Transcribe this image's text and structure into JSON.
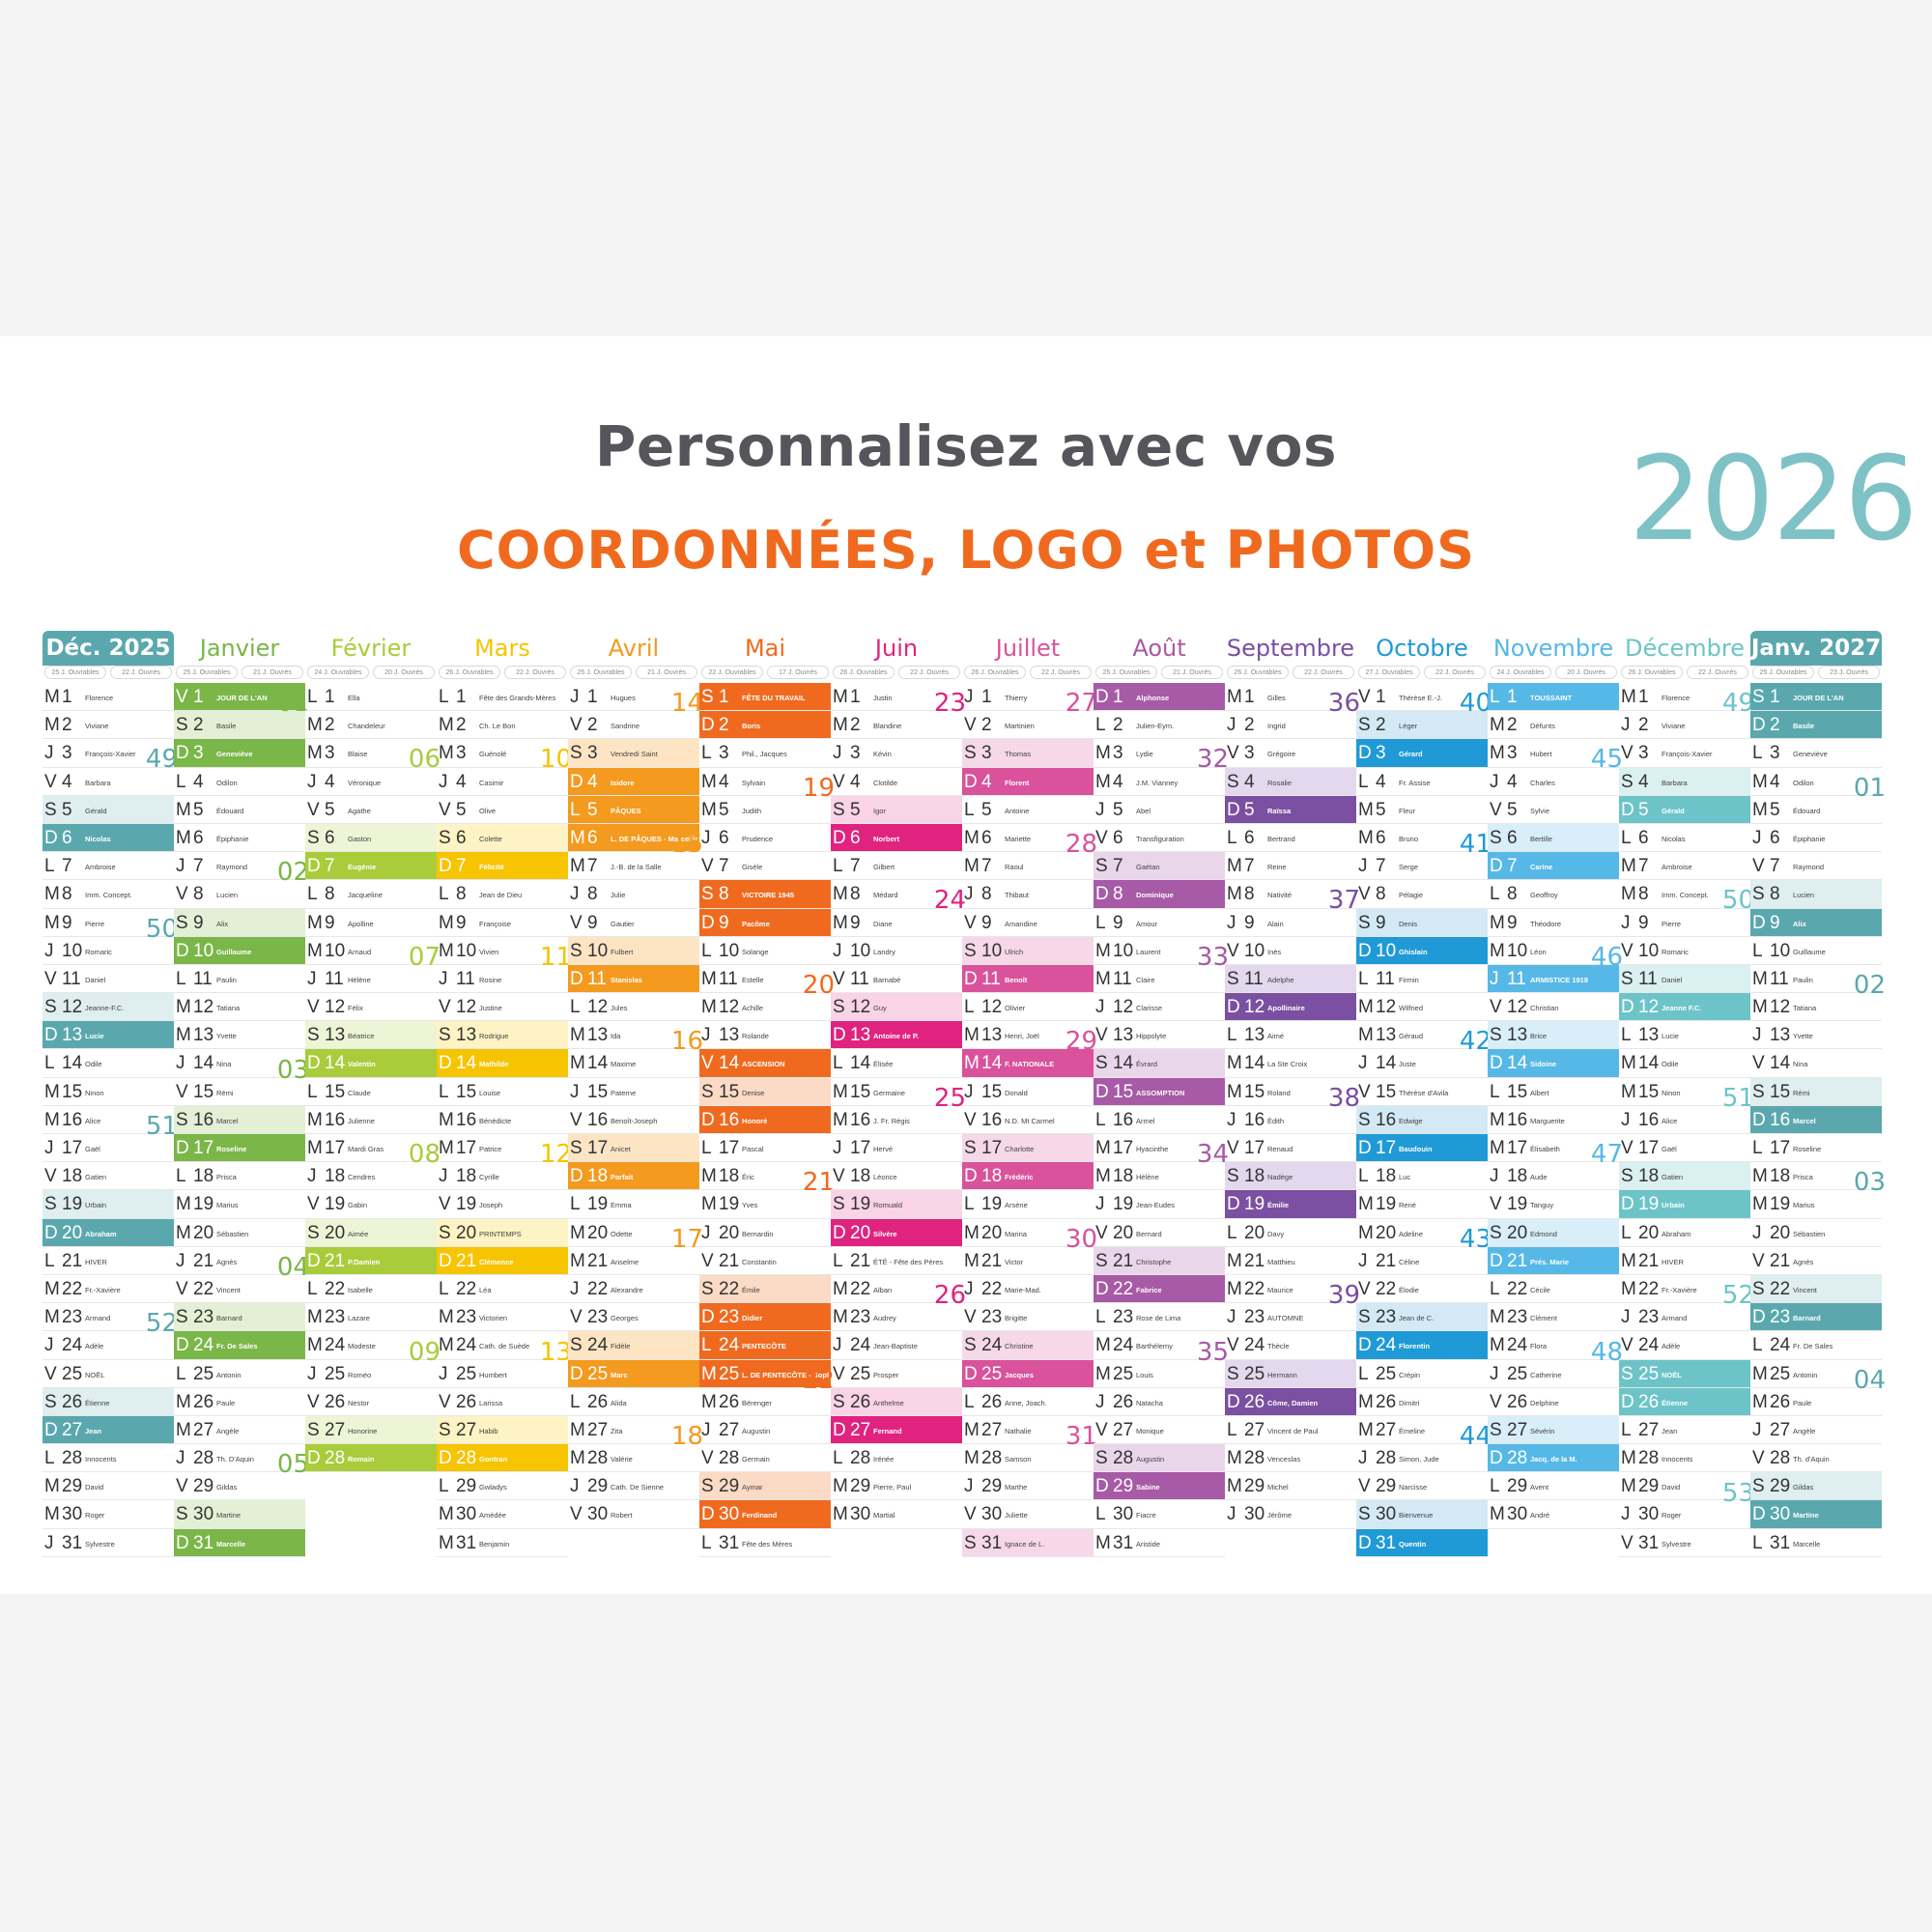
{
  "headline": "Personnalisez avec vos",
  "subline": "COORDONNÉES, LOGO et PHOTOS",
  "year": "2026",
  "months": [
    {
      "name": "Déc. 2025",
      "color": "#5aa8ae",
      "light": "#dfeeef",
      "boxed": true,
      "sun": [
        "25 J. Ouvrables",
        "22 J. Ouvrés"
      ],
      "first": 1,
      "days": 31,
      "weeks": [
        [
          "49",
          3
        ],
        [
          "50",
          9
        ],
        [
          "51",
          16
        ],
        [
          "52",
          23
        ]
      ],
      "names": [
        "Florence",
        "Viviane",
        "François-Xavier",
        "Barbara",
        "Gérald",
        "Nicolas",
        "Ambroise",
        "Imm. Concept.",
        "Pierre",
        "Romaric",
        "Daniel",
        "Jeanne-F.C.",
        "Lucie",
        "Odile",
        "Ninon",
        "Alice",
        "Gaël",
        "Gatien",
        "Urbain",
        "Abraham",
        "HIVER",
        "Fr.-Xavière",
        "Armand",
        "Adèle",
        "NOËL",
        "Étienne",
        "Jean",
        "Innocents",
        "David",
        "Roger",
        "Sylvestre"
      ]
    },
    {
      "name": "Janvier",
      "color": "#7ab648",
      "light": "#e4f0d6",
      "boxed": false,
      "sun": [
        "25 J. Ouvrables",
        "21 J. Ouvrés"
      ],
      "first": 4,
      "days": 31,
      "weeks": [
        [
          "01",
          1
        ],
        [
          "02",
          7
        ],
        [
          "03",
          14
        ],
        [
          "04",
          21
        ],
        [
          "05",
          28
        ]
      ],
      "names": [
        "JOUR DE L'AN",
        "Basile",
        "Geneviève",
        "Odilon",
        "Édouard",
        "Épiphanie",
        "Raymond",
        "Lucien",
        "Alix",
        "Guillaume",
        "Paulin",
        "Tatiana",
        "Yvette",
        "Nina",
        "Rémi",
        "Marcel",
        "Roseline",
        "Prisca",
        "Marius",
        "Sébastien",
        "Agnès",
        "Vincent",
        "Barnard",
        "Fr. De Sales",
        "Antonin",
        "Paule",
        "Angèle",
        "Th. D'Aquin",
        "Gildas",
        "Martine",
        "Marcelle"
      ]
    },
    {
      "name": "Février",
      "color": "#a9cc3b",
      "light": "#eef5d6",
      "boxed": false,
      "sun": [
        "24 J. Ouvrables",
        "20 J. Ouvrés"
      ],
      "first": 0,
      "days": 28,
      "weeks": [
        [
          "06",
          3
        ],
        [
          "07",
          10
        ],
        [
          "08",
          17
        ],
        [
          "09",
          24
        ]
      ],
      "names": [
        "Ella",
        "Chandeleur",
        "Blaise",
        "Véronique",
        "Agathe",
        "Gaston",
        "Eugénie",
        "Jacqueline",
        "Apolline",
        "Arnaud",
        "Hélène",
        "Félix",
        "Béatrice",
        "Valentin",
        "Claude",
        "Julienne",
        "Mardi Gras",
        "Cendres",
        "Gabin",
        "Aimée",
        "P.Damien",
        "Isabelle",
        "Lazare",
        "Modeste",
        "Roméo",
        "Nestor",
        "Honorine",
        "Romain"
      ]
    },
    {
      "name": "Mars",
      "color": "#f6c400",
      "light": "#fdf3c4",
      "boxed": false,
      "sun": [
        "26 J. Ouvrables",
        "22 J. Ouvrés"
      ],
      "first": 0,
      "days": 31,
      "weeks": [
        [
          "10",
          3
        ],
        [
          "11",
          10
        ],
        [
          "12",
          17
        ],
        [
          "13",
          24
        ]
      ],
      "names": [
        "Fête des Grands-Mères",
        "Ch. Le Bon",
        "Guénolé",
        "Casimir",
        "Olive",
        "Colette",
        "Félicité",
        "Jean de Dieu",
        "Françoise",
        "Vivien",
        "Rosine",
        "Justine",
        "Rodrigue",
        "Mathilde",
        "Louise",
        "Bénédicte",
        "Patrice",
        "Cyrille",
        "Joseph",
        "PRINTEMPS",
        "Clémence",
        "Léa",
        "Victorien",
        "Cath. de Suède",
        "Humbert",
        "Larissa",
        "Habib",
        "Gontran",
        "Gwladys",
        "Amédée",
        "Benjamin"
      ]
    },
    {
      "name": "Avril",
      "color": "#f39a1f",
      "light": "#fde5c4",
      "boxed": false,
      "sun": [
        "25 J. Ouvrables",
        "21 J. Ouvrés"
      ],
      "first": 3,
      "days": 30,
      "weeks": [
        [
          "14",
          1
        ],
        [
          "15",
          6
        ],
        [
          "16",
          13
        ],
        [
          "17",
          20
        ],
        [
          "18",
          27
        ]
      ],
      "names": [
        "Hugues",
        "Sandrine",
        "Vendredi Saint",
        "Isidore",
        "PÂQUES",
        "L. DE PÂQUES - Marcellin",
        "J.-B. de la Salle",
        "Julie",
        "Gautier",
        "Fulbert",
        "Stanislas",
        "Jules",
        "Ida",
        "Maxime",
        "Paterne",
        "Benoît-Joseph",
        "Anicet",
        "Parfait",
        "Emma",
        "Odette",
        "Anselme",
        "Alexandre",
        "Georges",
        "Fidèle",
        "Marc",
        "Alida",
        "Zita",
        "Valérie",
        "Cath. De Sienne",
        "Robert"
      ]
    },
    {
      "name": "Mai",
      "color": "#ef6a1f",
      "light": "#fbdac6",
      "boxed": false,
      "sun": [
        "22 J. Ouvrables",
        "17 J. Ouvrés"
      ],
      "first": 5,
      "days": 31,
      "weeks": [
        [
          "19",
          4
        ],
        [
          "20",
          11
        ],
        [
          "21",
          18
        ],
        [
          "22",
          25
        ]
      ],
      "names": [
        "FÊTE DU TRAVAIL",
        "Boris",
        "Phil., Jacques",
        "Sylvain",
        "Judith",
        "Prudence",
        "Gisèle",
        "VICTOIRE 1945",
        "Pacôme",
        "Solange",
        "Estelle",
        "Achille",
        "Rolande",
        "ASCENSION",
        "Denise",
        "Honoré",
        "Pascal",
        "Éric",
        "Yves",
        "Bernardin",
        "Constantin",
        "Émile",
        "Didier",
        "PENTECÔTE",
        "L. DE PENTECÔTE - Sophie",
        "Bérenger",
        "Augustin",
        "Germain",
        "Aymar",
        "Ferdinand",
        "Fête des Mères"
      ]
    },
    {
      "name": "Juin",
      "color": "#e0237f",
      "light": "#f9d3e6",
      "boxed": false,
      "sun": [
        "26 J. Ouvrables",
        "22 J. Ouvrés"
      ],
      "first": 1,
      "days": 30,
      "weeks": [
        [
          "23",
          1
        ],
        [
          "24",
          8
        ],
        [
          "25",
          15
        ],
        [
          "26",
          22
        ]
      ],
      "names": [
        "Justin",
        "Blandine",
        "Kévin",
        "Clotilde",
        "Igor",
        "Norbert",
        "Gilbert",
        "Médard",
        "Diane",
        "Landry",
        "Barnabé",
        "Guy",
        "Antoine de P.",
        "Élisée",
        "Germaine",
        "J. Fr. Régis",
        "Hervé",
        "Léonce",
        "Romuald",
        "Silvère",
        "ÉTÉ - Fête des Pères",
        "Alban",
        "Audrey",
        "Jean-Baptiste",
        "Prosper",
        "Anthelme",
        "Fernand",
        "Irénée",
        "Pierre, Paul",
        "Martial"
      ]
    },
    {
      "name": "Juillet",
      "color": "#d9529b",
      "light": "#f6d8e8",
      "boxed": false,
      "sun": [
        "26 J. Ouvrables",
        "22 J. Ouvrés"
      ],
      "first": 3,
      "days": 31,
      "weeks": [
        [
          "27",
          1
        ],
        [
          "28",
          6
        ],
        [
          "29",
          13
        ],
        [
          "30",
          20
        ],
        [
          "31",
          27
        ]
      ],
      "names": [
        "Thierry",
        "Martinien",
        "Thomas",
        "Florent",
        "Antoine",
        "Mariette",
        "Raoul",
        "Thibaut",
        "Amandine",
        "Ulrich",
        "Benoît",
        "Olivier",
        "Henri, Joël",
        "F. NATIONALE",
        "Donald",
        "N.D. Mt Carmel",
        "Charlotte",
        "Frédéric",
        "Arsène",
        "Marina",
        "Victor",
        "Marie-Mad.",
        "Brigitte",
        "Christine",
        "Jacques",
        "Anne, Joach.",
        "Nathalie",
        "Samson",
        "Marthe",
        "Juliette",
        "Ignace de L."
      ]
    },
    {
      "name": "Août",
      "color": "#a75aa5",
      "light": "#ead6ea",
      "boxed": false,
      "sun": [
        "25 J. Ouvrables",
        "21 J. Ouvrés"
      ],
      "first": 6,
      "days": 31,
      "weeks": [
        [
          "32",
          3
        ],
        [
          "33",
          10
        ],
        [
          "34",
          17
        ],
        [
          "35",
          24
        ]
      ],
      "names": [
        "Alphonse",
        "Julien-Eym.",
        "Lydie",
        "J.M. Vianney",
        "Abel",
        "Transfiguration",
        "Gaétan",
        "Dominique",
        "Amour",
        "Laurent",
        "Claire",
        "Clarisse",
        "Hippolyte",
        "Évrard",
        "ASSOMPTION",
        "Armel",
        "Hyacinthe",
        "Hélène",
        "Jean-Eudes",
        "Bernard",
        "Christophe",
        "Fabrice",
        "Rose de Lima",
        "Barthélemy",
        "Louis",
        "Natacha",
        "Monique",
        "Augustin",
        "Sabine",
        "Fiacre",
        "Aristide"
      ]
    },
    {
      "name": "Septembre",
      "color": "#7b4fa1",
      "light": "#e3d8ee",
      "boxed": false,
      "sun": [
        "26 J. Ouvrables",
        "22 J. Ouvrés"
      ],
      "first": 2,
      "days": 30,
      "weeks": [
        [
          "36",
          1
        ],
        [
          "37",
          8
        ],
        [
          "38",
          15
        ],
        [
          "39",
          22
        ]
      ],
      "names": [
        "Gilles",
        "Ingrid",
        "Grégoire",
        "Rosalie",
        "Raïssa",
        "Bertrand",
        "Reine",
        "Nativité",
        "Alain",
        "Inès",
        "Adelphe",
        "Apollinaire",
        "Aimé",
        "La Ste Croix",
        "Roland",
        "Édith",
        "Renaud",
        "Nadège",
        "Émilie",
        "Davy",
        "Matthieu",
        "Maurice",
        "AUTOMNE",
        "Thècle",
        "Hermann",
        "Côme, Damien",
        "Vincent de Paul",
        "Venceslas",
        "Michel",
        "Jérôme"
      ]
    },
    {
      "name": "Octobre",
      "color": "#1f9ad6",
      "light": "#d3eaf6",
      "boxed": false,
      "sun": [
        "27 J. Ouvrables",
        "22 J. Ouvrés"
      ],
      "first": 4,
      "days": 31,
      "weeks": [
        [
          "40",
          1
        ],
        [
          "41",
          6
        ],
        [
          "42",
          13
        ],
        [
          "43",
          20
        ],
        [
          "44",
          27
        ]
      ],
      "names": [
        "Thérèse E.-J.",
        "Léger",
        "Gérard",
        "Fr. Assise",
        "Fleur",
        "Bruno",
        "Serge",
        "Pélagie",
        "Denis",
        "Ghislain",
        "Firmin",
        "Wilfried",
        "Géraud",
        "Juste",
        "Thérèse d'Avila",
        "Edwige",
        "Baudouin",
        "Luc",
        "René",
        "Adeline",
        "Céline",
        "Élodie",
        "Jean de C.",
        "Florentin",
        "Crépin",
        "Dimitri",
        "Émeline",
        "Simon, Jude",
        "Narcisse",
        "Bienvenue",
        "Quentin"
      ]
    },
    {
      "name": "Novembre",
      "color": "#56b8e6",
      "light": "#d8eef9",
      "boxed": false,
      "sun": [
        "24 J. Ouvrables",
        "20 J. Ouvrés"
      ],
      "first": 0,
      "days": 30,
      "weeks": [
        [
          "45",
          3
        ],
        [
          "46",
          10
        ],
        [
          "47",
          17
        ],
        [
          "48",
          24
        ]
      ],
      "names": [
        "TOUSSAINT",
        "Défunts",
        "Hubert",
        "Charles",
        "Sylvie",
        "Bertille",
        "Carine",
        "Geoffroy",
        "Théodore",
        "Léon",
        "ARMISTICE 1918",
        "Christian",
        "Brice",
        "Sidoine",
        "Albert",
        "Marguerite",
        "Élisabeth",
        "Aude",
        "Tanguy",
        "Edmond",
        "Prés. Marie",
        "Cécile",
        "Clément",
        "Flora",
        "Catherine",
        "Delphine",
        "Sévérin",
        "Jacq. de la M.",
        "Avent",
        "André"
      ]
    },
    {
      "name": "Décembre",
      "color": "#6cc4c9",
      "light": "#dbf0f1",
      "boxed": false,
      "sun": [
        "26 J. Ouvrables",
        "22 J. Ouvrés"
      ],
      "first": 2,
      "days": 31,
      "weeks": [
        [
          "49",
          1
        ],
        [
          "50",
          8
        ],
        [
          "51",
          15
        ],
        [
          "52",
          22
        ],
        [
          "53",
          29
        ]
      ],
      "names": [
        "Florence",
        "Viviane",
        "François-Xavier",
        "Barbara",
        "Gérald",
        "Nicolas",
        "Ambroise",
        "Imm. Concept.",
        "Pierre",
        "Romaric",
        "Daniel",
        "Jeanne F.C.",
        "Lucie",
        "Odile",
        "Ninon",
        "Alice",
        "Gaël",
        "Gatien",
        "Urbain",
        "Abraham",
        "HIVER",
        "Fr.-Xavière",
        "Armand",
        "Adèle",
        "NOËL",
        "Étienne",
        "Jean",
        "Innocents",
        "David",
        "Roger",
        "Sylvestre"
      ]
    },
    {
      "name": "Janv. 2027",
      "color": "#5aa8ae",
      "light": "#dfeeef",
      "boxed": true,
      "sun": [
        "25 J. Ouvrables",
        "23 J. Ouvrés"
      ],
      "first": 5,
      "days": 31,
      "weeks": [
        [
          "01",
          4
        ],
        [
          "02",
          11
        ],
        [
          "03",
          18
        ],
        [
          "04",
          25
        ]
      ],
      "names": [
        "JOUR DE L'AN",
        "Basile",
        "Geneviève",
        "Odilon",
        "Édouard",
        "Épiphanie",
        "Raymond",
        "Lucien",
        "Alix",
        "Guillaume",
        "Paulin",
        "Tatiana",
        "Yvette",
        "Nina",
        "Rémi",
        "Marcel",
        "Roseline",
        "Prisca",
        "Marius",
        "Sébastien",
        "Agnès",
        "Vincent",
        "Barnard",
        "Fr. De Sales",
        "Antonin",
        "Paule",
        "Angèle",
        "Th. d'Aquin",
        "Gildas",
        "Martine",
        "Marcelle"
      ]
    }
  ],
  "weekday_letters": [
    "L",
    "M",
    "M",
    "J",
    "V",
    "S",
    "D"
  ],
  "holiday_days": {
    "Janvier": [
      1
    ],
    "Avril": [
      5,
      6
    ],
    "Mai": [
      1,
      8,
      14,
      24,
      25
    ],
    "Juillet": [
      14
    ],
    "Août": [
      15
    ],
    "Novembre": [
      1,
      11
    ],
    "Décembre": [
      25
    ],
    "Janv. 2027": [
      1
    ]
  }
}
